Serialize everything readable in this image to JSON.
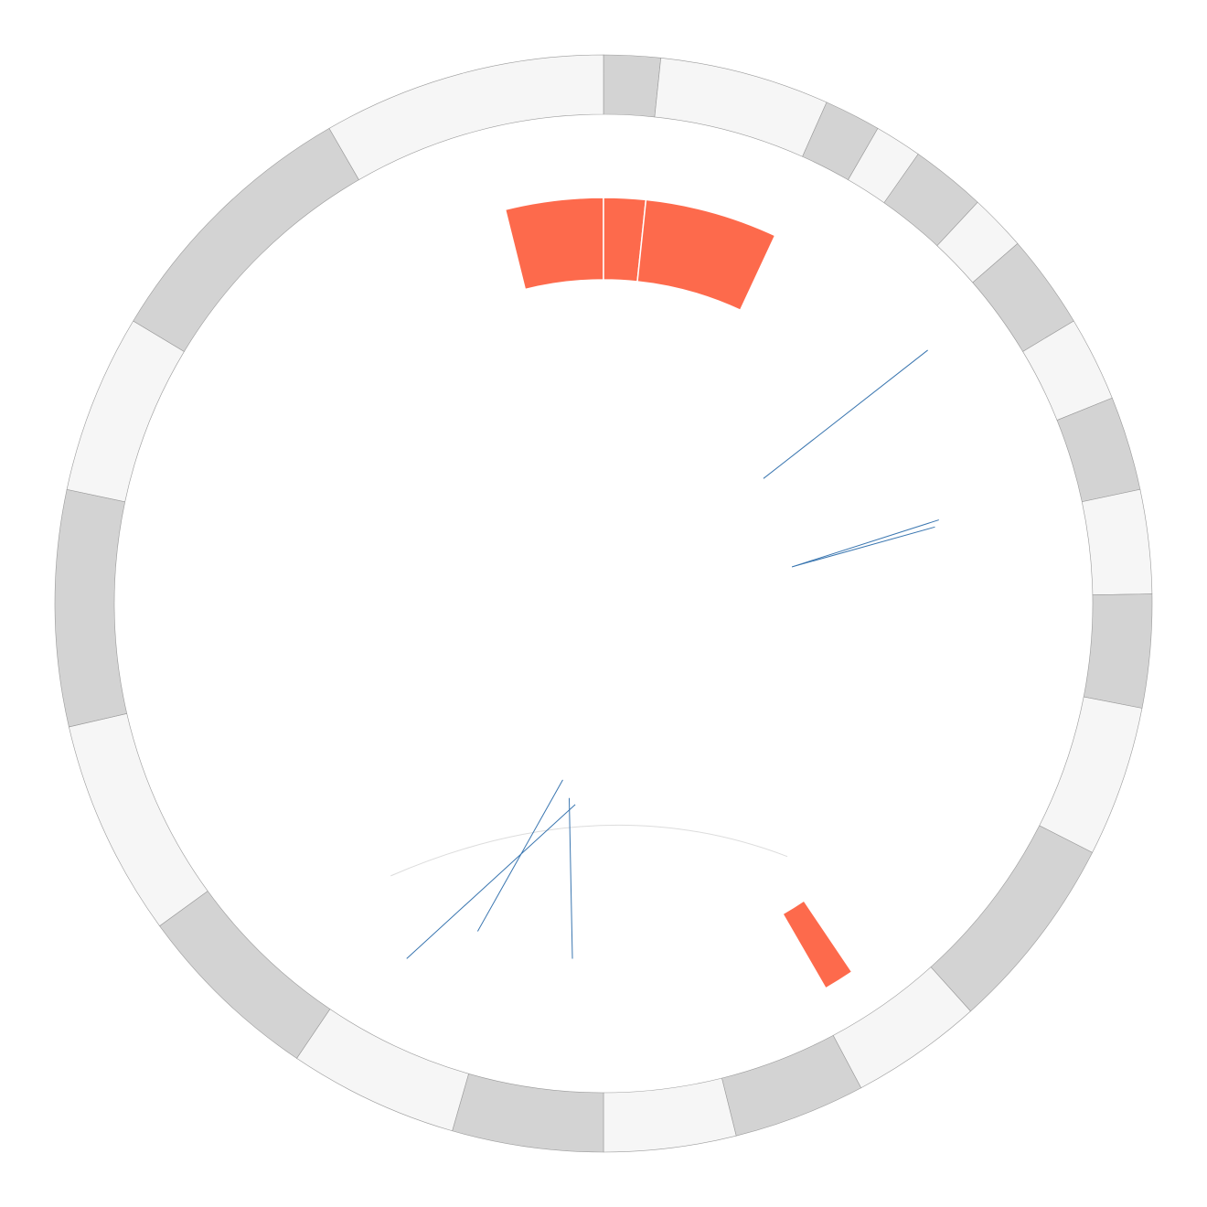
{
  "chart_data": {
    "type": "circos",
    "ideogram": {
      "colors": {
        "dark": "#d3d3d3",
        "light": "#f6f6f6",
        "outline": "#9a9a9a"
      },
      "segments": [
        {
          "start": 0,
          "end": 6,
          "shade": "dark"
        },
        {
          "start": 6,
          "end": 24,
          "shade": "light"
        },
        {
          "start": 24,
          "end": 30,
          "shade": "dark"
        },
        {
          "start": 30,
          "end": 35,
          "shade": "light"
        },
        {
          "start": 35,
          "end": 43,
          "shade": "dark"
        },
        {
          "start": 43,
          "end": 49,
          "shade": "light"
        },
        {
          "start": 49,
          "end": 59,
          "shade": "dark"
        },
        {
          "start": 59,
          "end": 68,
          "shade": "light"
        },
        {
          "start": 68,
          "end": 78,
          "shade": "dark"
        },
        {
          "start": 78,
          "end": 89,
          "shade": "light"
        },
        {
          "start": 89,
          "end": 101,
          "shade": "dark"
        },
        {
          "start": 101,
          "end": 117,
          "shade": "light"
        },
        {
          "start": 117,
          "end": 138,
          "shade": "dark"
        },
        {
          "start": 138,
          "end": 152,
          "shade": "light"
        },
        {
          "start": 152,
          "end": 166,
          "shade": "dark"
        },
        {
          "start": 166,
          "end": 180,
          "shade": "light"
        },
        {
          "start": 180,
          "end": 196,
          "shade": "dark"
        },
        {
          "start": 196,
          "end": 214,
          "shade": "light"
        },
        {
          "start": 214,
          "end": 234,
          "shade": "dark"
        },
        {
          "start": 234,
          "end": 257,
          "shade": "light"
        },
        {
          "start": 257,
          "end": 282,
          "shade": "dark"
        },
        {
          "start": 282,
          "end": 301,
          "shade": "light"
        },
        {
          "start": 301,
          "end": 330,
          "shade": "dark"
        },
        {
          "start": 330,
          "end": 360,
          "shade": "light"
        }
      ]
    },
    "highlights": {
      "color": "#fd6a4c",
      "blocks": [
        {
          "start": -14,
          "end": 0
        },
        {
          "start": 0,
          "end": 6
        },
        {
          "start": 6,
          "end": 25
        },
        {
          "start": 146,
          "end": 150
        }
      ]
    },
    "links": {
      "color": "#3a76b0",
      "chords": [
        {
          "angle_start": 52,
          "angle_end": 52,
          "r_start": 0.37,
          "r_end": 0.75
        },
        {
          "angle_start": 79,
          "angle_end": 77,
          "r_start": 0.35,
          "r_end": 0.62
        },
        {
          "angle_start": 79,
          "angle_end": 76,
          "r_start": 0.35,
          "r_end": 0.63
        },
        {
          "angle_start": 209,
          "angle_end": 188,
          "r_start": 0.74,
          "r_end": 0.37
        },
        {
          "angle_start": 201,
          "angle_end": 193,
          "r_start": 0.64,
          "r_end": 0.33
        },
        {
          "angle_start": 185,
          "angle_end": 190,
          "r_start": 0.65,
          "r_end": 0.36
        }
      ]
    },
    "arc": {
      "color": "#dcdcdc",
      "from_angle": 144,
      "to_angle": 218,
      "from_r": 0.57,
      "to_r": 0.63,
      "mid_r": 0.36
    }
  }
}
